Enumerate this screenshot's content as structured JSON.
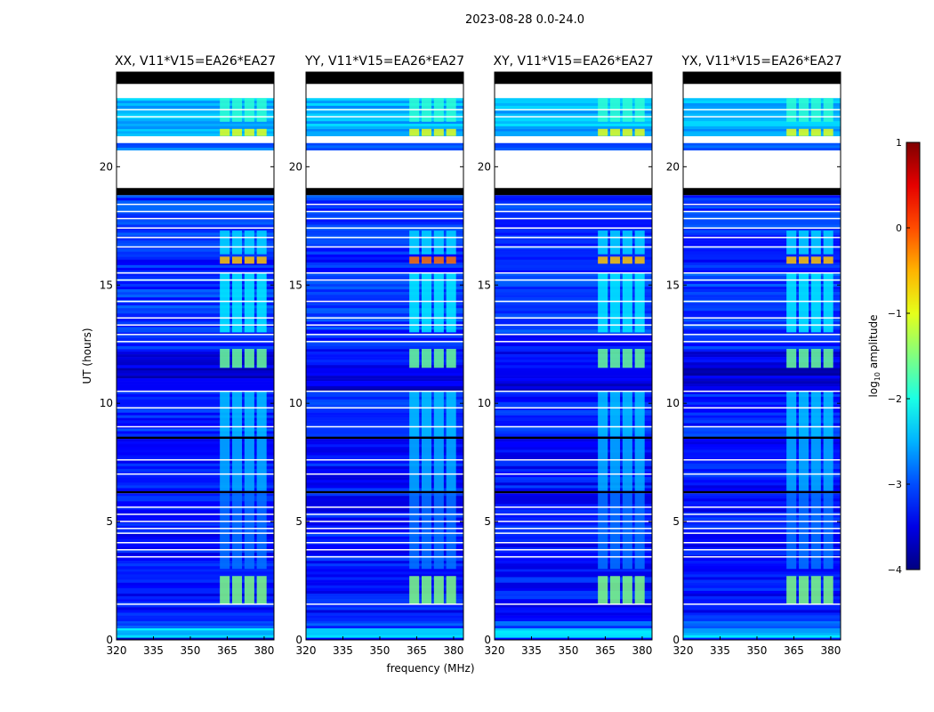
{
  "chart_data": {
    "type": "heatmap",
    "suptitle": "2023-08-28 0.0-24.0",
    "xlabel": "frequency (MHz)",
    "ylabel": "UT (hours)",
    "xlim": [
      320,
      384
    ],
    "ylim": [
      0,
      24
    ],
    "xticks": [
      "320",
      "335",
      "350",
      "365",
      "380"
    ],
    "xtick_values": [
      320,
      335,
      350,
      365,
      380
    ],
    "yticks": [
      "0",
      "5",
      "10",
      "15",
      "20"
    ],
    "ytick_values": [
      0,
      5,
      10,
      15,
      20
    ],
    "colorbar": {
      "label": "log10 amplitude",
      "label_main": "log",
      "label_sub": "10",
      "label_rest": " amplitude",
      "range": [
        -4,
        1
      ],
      "ticks": [
        "1",
        "0",
        "−1",
        "−2",
        "−3",
        "−4"
      ],
      "tick_values": [
        1,
        0,
        -1,
        -2,
        -3,
        -4
      ],
      "colormap": "jet"
    },
    "panels": [
      {
        "title": "XX, V11*V15=EA26*EA27",
        "rfi_boost": 0
      },
      {
        "title": "YY, V11*V15=EA26*EA27",
        "rfi_boost": 0.4
      },
      {
        "title": "XY, V11*V15=EA26*EA27",
        "rfi_boost": 0
      },
      {
        "title": "YX, V11*V15=EA26*EA27",
        "rfi_boost": 0
      }
    ],
    "time_segments": [
      {
        "t": [
          0,
          0.1
        ],
        "level": -3.5
      },
      {
        "t": [
          0.1,
          0.5
        ],
        "level": -2.4
      },
      {
        "t": [
          0.5,
          0.8
        ],
        "level": -3.0
      },
      {
        "t": [
          0.8,
          3.0
        ],
        "level": -3.3
      },
      {
        "t": [
          3.0,
          6.2
        ],
        "level": -3.3
      },
      {
        "t": [
          6.2,
          6.3
        ],
        "level": "flagged"
      },
      {
        "t": [
          6.3,
          8.5
        ],
        "level": -3.3
      },
      {
        "t": [
          8.5,
          8.6
        ],
        "level": "flagged"
      },
      {
        "t": [
          8.6,
          10.5
        ],
        "level": -3.2
      },
      {
        "t": [
          10.5,
          11.5
        ],
        "level": -3.6
      },
      {
        "t": [
          11.5,
          12.3
        ],
        "level": -3.4
      },
      {
        "t": [
          12.3,
          13.0
        ],
        "level": -3.2
      },
      {
        "t": [
          13.0,
          15.5
        ],
        "level": -3.1
      },
      {
        "t": [
          15.5,
          16.3
        ],
        "level": -3.2
      },
      {
        "t": [
          16.3,
          18.8
        ],
        "level": -3.1
      },
      {
        "t": [
          18.8,
          19.1
        ],
        "level": "flagged"
      },
      {
        "t": [
          19.1,
          20.7
        ],
        "level": "nodata"
      },
      {
        "t": [
          20.7,
          21.0
        ],
        "level": -2.9
      },
      {
        "t": [
          21.0,
          21.3
        ],
        "level": "nodata"
      },
      {
        "t": [
          21.3,
          21.6
        ],
        "level": -2.6
      },
      {
        "t": [
          21.6,
          22.9
        ],
        "level": -2.5
      },
      {
        "t": [
          22.9,
          23.5
        ],
        "level": "nodata"
      },
      {
        "t": [
          23.5,
          24.0
        ],
        "level": "flagged"
      }
    ],
    "rfi_bands_mhz": [
      [
        362,
        366
      ],
      [
        367,
        371
      ],
      [
        372,
        376
      ],
      [
        377,
        381
      ]
    ],
    "rfi_events": [
      {
        "t": [
          1.5,
          2.7
        ],
        "level": -1.5
      },
      {
        "t": [
          3.0,
          6.2
        ],
        "level": -2.8
      },
      {
        "t": [
          6.3,
          8.5
        ],
        "level": -2.5
      },
      {
        "t": [
          8.6,
          10.5
        ],
        "level": -2.4
      },
      {
        "t": [
          11.5,
          12.3
        ],
        "level": -1.6
      },
      {
        "t": [
          13.0,
          15.5
        ],
        "level": -2.2
      },
      {
        "t": [
          15.9,
          16.2
        ],
        "level": -0.6
      },
      {
        "t": [
          16.3,
          17.3
        ],
        "level": -2.3
      },
      {
        "t": [
          21.3,
          21.6
        ],
        "level": -1.0
      },
      {
        "t": [
          21.9,
          22.9
        ],
        "level": -1.9
      }
    ],
    "gap_lines_hours": [
      1.5,
      3.5,
      3.8,
      4.1,
      4.5,
      4.7,
      5.0,
      5.3,
      5.6,
      7.0,
      7.6,
      9.0,
      9.8,
      10.5,
      12.6,
      12.9,
      13.3,
      13.6,
      14.3,
      15.2,
      15.5,
      16.6,
      17.0,
      17.4,
      17.8,
      18.1,
      18.4,
      22.1,
      22.4
    ]
  }
}
